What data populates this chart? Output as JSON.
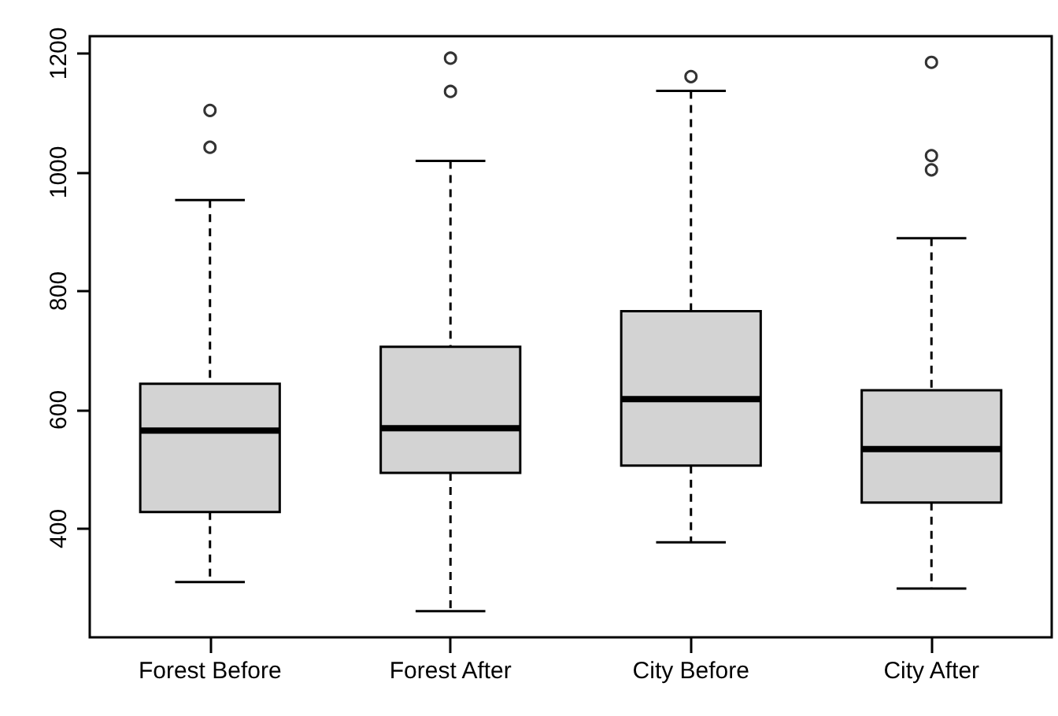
{
  "chart_data": {
    "type": "box",
    "categories": [
      "Forest Before",
      "Forest After",
      "City Before",
      "City After"
    ],
    "boxes": [
      {
        "low": 310,
        "q1": 428,
        "median": 565,
        "q3": 644,
        "high": 953,
        "outliers": [
          1104,
          1042
        ]
      },
      {
        "low": 261,
        "q1": 494,
        "median": 569,
        "q3": 706,
        "high": 1019,
        "outliers": [
          1192,
          1136
        ]
      },
      {
        "low": 377,
        "q1": 506,
        "median": 618,
        "q3": 766,
        "high": 1137,
        "outliers": [
          1161
        ]
      },
      {
        "low": 299,
        "q1": 444,
        "median": 534,
        "q3": 633,
        "high": 889,
        "outliers": [
          1185,
          1028,
          1004
        ]
      }
    ],
    "color": "#d3d3d3",
    "ylim": [
      217,
      1229
    ],
    "yticks": [
      400,
      600,
      800,
      1000,
      1200
    ],
    "grid": false,
    "marker": "circle"
  }
}
